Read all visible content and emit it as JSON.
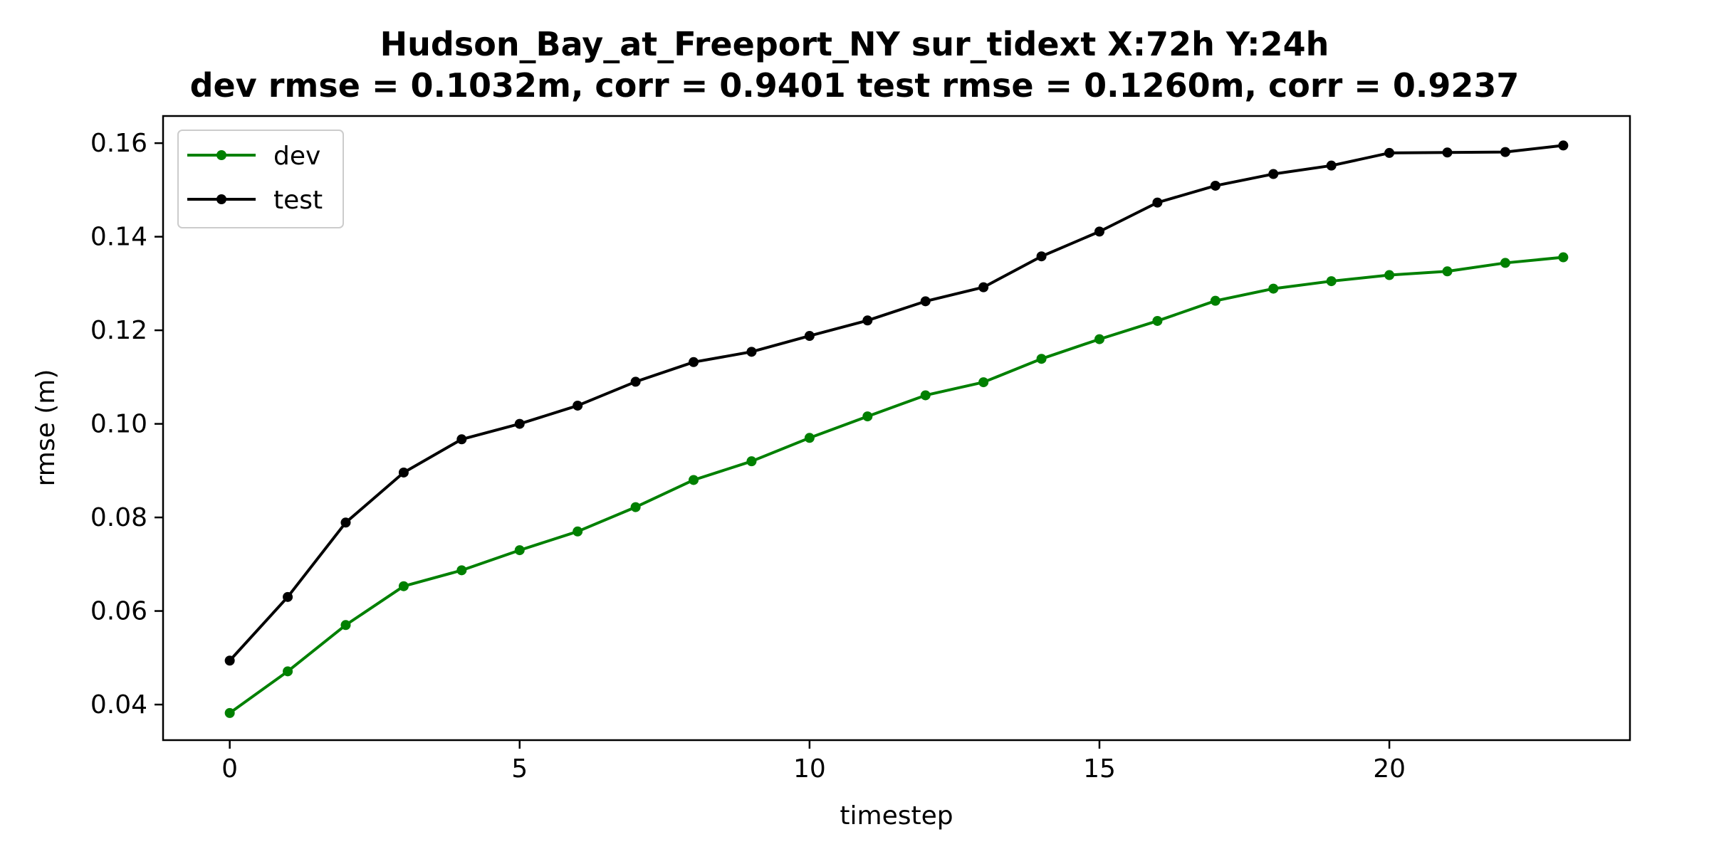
{
  "chart_data": {
    "type": "line",
    "title": "Hudson_Bay_at_Freeport_NY   sur_tidext   X:72h   Y:24h",
    "subtitle": "dev rmse = 0.1032m, corr = 0.9401   test rmse = 0.1260m, corr = 0.9237",
    "xlabel": "timestep",
    "ylabel": "rmse (m)",
    "xlim": [
      -1.15,
      24.15
    ],
    "ylim": [
      0.0324,
      0.1658
    ],
    "xticks": [
      0,
      5,
      10,
      15,
      20
    ],
    "xtick_labels": [
      "0",
      "5",
      "10",
      "15",
      "20"
    ],
    "yticks": [
      0.04,
      0.06,
      0.08,
      0.1,
      0.12,
      0.14,
      0.16
    ],
    "ytick_labels": [
      "0.04",
      "0.06",
      "0.08",
      "0.10",
      "0.12",
      "0.14",
      "0.16"
    ],
    "grid": false,
    "legend_position": "upper-left",
    "x": [
      0,
      1,
      2,
      3,
      4,
      5,
      6,
      7,
      8,
      9,
      10,
      11,
      12,
      13,
      14,
      15,
      16,
      17,
      18,
      19,
      20,
      21,
      22,
      23
    ],
    "series": [
      {
        "name": "dev",
        "color": "#008000",
        "values": [
          0.0382,
          0.0471,
          0.057,
          0.0653,
          0.0687,
          0.073,
          0.077,
          0.0822,
          0.088,
          0.092,
          0.097,
          0.1016,
          0.1061,
          0.1089,
          0.1139,
          0.1181,
          0.122,
          0.1263,
          0.1289,
          0.1305,
          0.1318,
          0.1326,
          0.1344,
          0.1356
        ]
      },
      {
        "name": "test",
        "color": "#000000",
        "values": [
          0.0494,
          0.063,
          0.0789,
          0.0896,
          0.0967,
          0.1,
          0.1039,
          0.109,
          0.1132,
          0.1154,
          0.1188,
          0.1221,
          0.1262,
          0.1292,
          0.1358,
          0.1411,
          0.1473,
          0.1509,
          0.1534,
          0.1552,
          0.1579,
          0.158,
          0.1581,
          0.1595
        ]
      }
    ]
  }
}
